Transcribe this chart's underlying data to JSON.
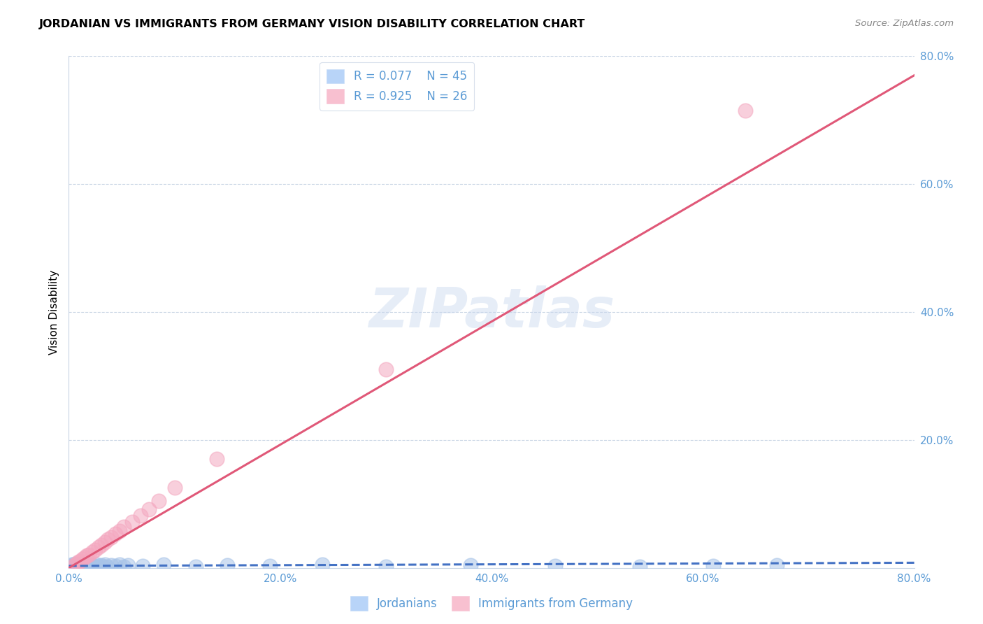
{
  "title": "JORDANIAN VS IMMIGRANTS FROM GERMANY VISION DISABILITY CORRELATION CHART",
  "source": "Source: ZipAtlas.com",
  "ylabel": "Vision Disability",
  "watermark": "ZIPatlas",
  "blue_scatter_color": "#a8c4e8",
  "pink_scatter_color": "#f4a8c0",
  "blue_line_color": "#4472c4",
  "pink_line_color": "#e05878",
  "axis_color": "#5b9bd5",
  "grid_color": "#c8d4e4",
  "background_color": "#ffffff",
  "xlim": [
    0.0,
    0.8
  ],
  "ylim": [
    0.0,
    0.8
  ],
  "legend1_R1": "0.077",
  "legend1_N1": "45",
  "legend1_R2": "0.925",
  "legend1_N2": "26",
  "legend2_label1": "Jordanians",
  "legend2_label2": "Immigrants from Germany",
  "jord_x": [
    0.002,
    0.003,
    0.004,
    0.005,
    0.006,
    0.007,
    0.008,
    0.009,
    0.01,
    0.011,
    0.012,
    0.013,
    0.014,
    0.015,
    0.016,
    0.017,
    0.018,
    0.019,
    0.02,
    0.021,
    0.022,
    0.024,
    0.026,
    0.028,
    0.03,
    0.032,
    0.034,
    0.036,
    0.04,
    0.044,
    0.048,
    0.052,
    0.056,
    0.07,
    0.09,
    0.12,
    0.15,
    0.19,
    0.24,
    0.3,
    0.38,
    0.46,
    0.54,
    0.61,
    0.67
  ],
  "jord_y": [
    0.003,
    0.005,
    0.002,
    0.004,
    0.006,
    0.003,
    0.005,
    0.002,
    0.004,
    0.003,
    0.006,
    0.002,
    0.004,
    0.003,
    0.005,
    0.002,
    0.004,
    0.003,
    0.005,
    0.002,
    0.004,
    0.003,
    0.005,
    0.002,
    0.004,
    0.003,
    0.005,
    0.002,
    0.004,
    0.003,
    0.005,
    0.002,
    0.004,
    0.003,
    0.005,
    0.002,
    0.004,
    0.003,
    0.005,
    0.002,
    0.004,
    0.003,
    0.002,
    0.003,
    0.004
  ],
  "germ_x": [
    0.005,
    0.007,
    0.009,
    0.011,
    0.013,
    0.015,
    0.017,
    0.019,
    0.022,
    0.025,
    0.028,
    0.031,
    0.034,
    0.037,
    0.04,
    0.044,
    0.048,
    0.052,
    0.06,
    0.068,
    0.076,
    0.085,
    0.1,
    0.14,
    0.3,
    0.64
  ],
  "germ_y": [
    0.004,
    0.006,
    0.009,
    0.011,
    0.014,
    0.016,
    0.019,
    0.021,
    0.025,
    0.028,
    0.032,
    0.036,
    0.04,
    0.044,
    0.048,
    0.053,
    0.058,
    0.064,
    0.072,
    0.082,
    0.092,
    0.105,
    0.125,
    0.17,
    0.31,
    0.715
  ],
  "jord_trend_x": [
    0.0,
    0.8
  ],
  "jord_trend_y": [
    0.003,
    0.008
  ],
  "germ_trend_x": [
    0.0,
    0.8
  ],
  "germ_trend_y": [
    0.0,
    0.77
  ]
}
